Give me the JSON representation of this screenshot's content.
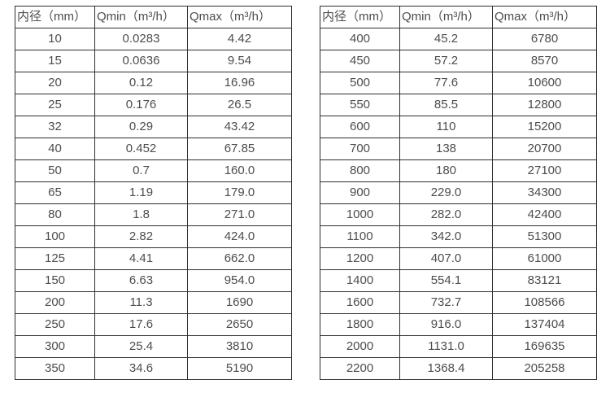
{
  "colors": {
    "border": "#2f2f2f",
    "text": "#4d4d4d",
    "background": "#ffffff"
  },
  "tables": {
    "left": {
      "headers": [
        "内径（mm）",
        "Qmin（m³/h）",
        "Qmax（m³/h）"
      ],
      "rows": [
        [
          "10",
          "0.0283",
          "4.42"
        ],
        [
          "15",
          "0.0636",
          "9.54"
        ],
        [
          "20",
          "0.12",
          "16.96"
        ],
        [
          "25",
          "0.176",
          "26.5"
        ],
        [
          "32",
          "0.29",
          "43.42"
        ],
        [
          "40",
          "0.452",
          "67.85"
        ],
        [
          "50",
          "0.7",
          "160.0"
        ],
        [
          "65",
          "1.19",
          "179.0"
        ],
        [
          "80",
          "1.8",
          "271.0"
        ],
        [
          "100",
          "2.82",
          "424.0"
        ],
        [
          "125",
          "4.41",
          "662.0"
        ],
        [
          "150",
          "6.63",
          "954.0"
        ],
        [
          "200",
          "11.3",
          "1690"
        ],
        [
          "250",
          "17.6",
          "2650"
        ],
        [
          "300",
          "25.4",
          "3810"
        ],
        [
          "350",
          "34.6",
          "5190"
        ]
      ]
    },
    "right": {
      "headers": [
        "内径（mm）",
        "Qmin（m³/h）",
        "Qmax（m³/h）"
      ],
      "rows": [
        [
          "400",
          "45.2",
          "6780"
        ],
        [
          "450",
          "57.2",
          "8570"
        ],
        [
          "500",
          "77.6",
          "10600"
        ],
        [
          "550",
          "85.5",
          "12800"
        ],
        [
          "600",
          "110",
          "15200"
        ],
        [
          "700",
          "138",
          "20700"
        ],
        [
          "800",
          "180",
          "27100"
        ],
        [
          "900",
          "229.0",
          "34300"
        ],
        [
          "1000",
          "282.0",
          "42400"
        ],
        [
          "1100",
          "342.0",
          "51300"
        ],
        [
          "1200",
          "407.0",
          "61000"
        ],
        [
          "1400",
          "554.1",
          "83121"
        ],
        [
          "1600",
          "732.7",
          "108566"
        ],
        [
          "1800",
          "916.0",
          "137404"
        ],
        [
          "2000",
          "1131.0",
          "169635"
        ],
        [
          "2200",
          "1368.4",
          "205258"
        ]
      ]
    }
  }
}
